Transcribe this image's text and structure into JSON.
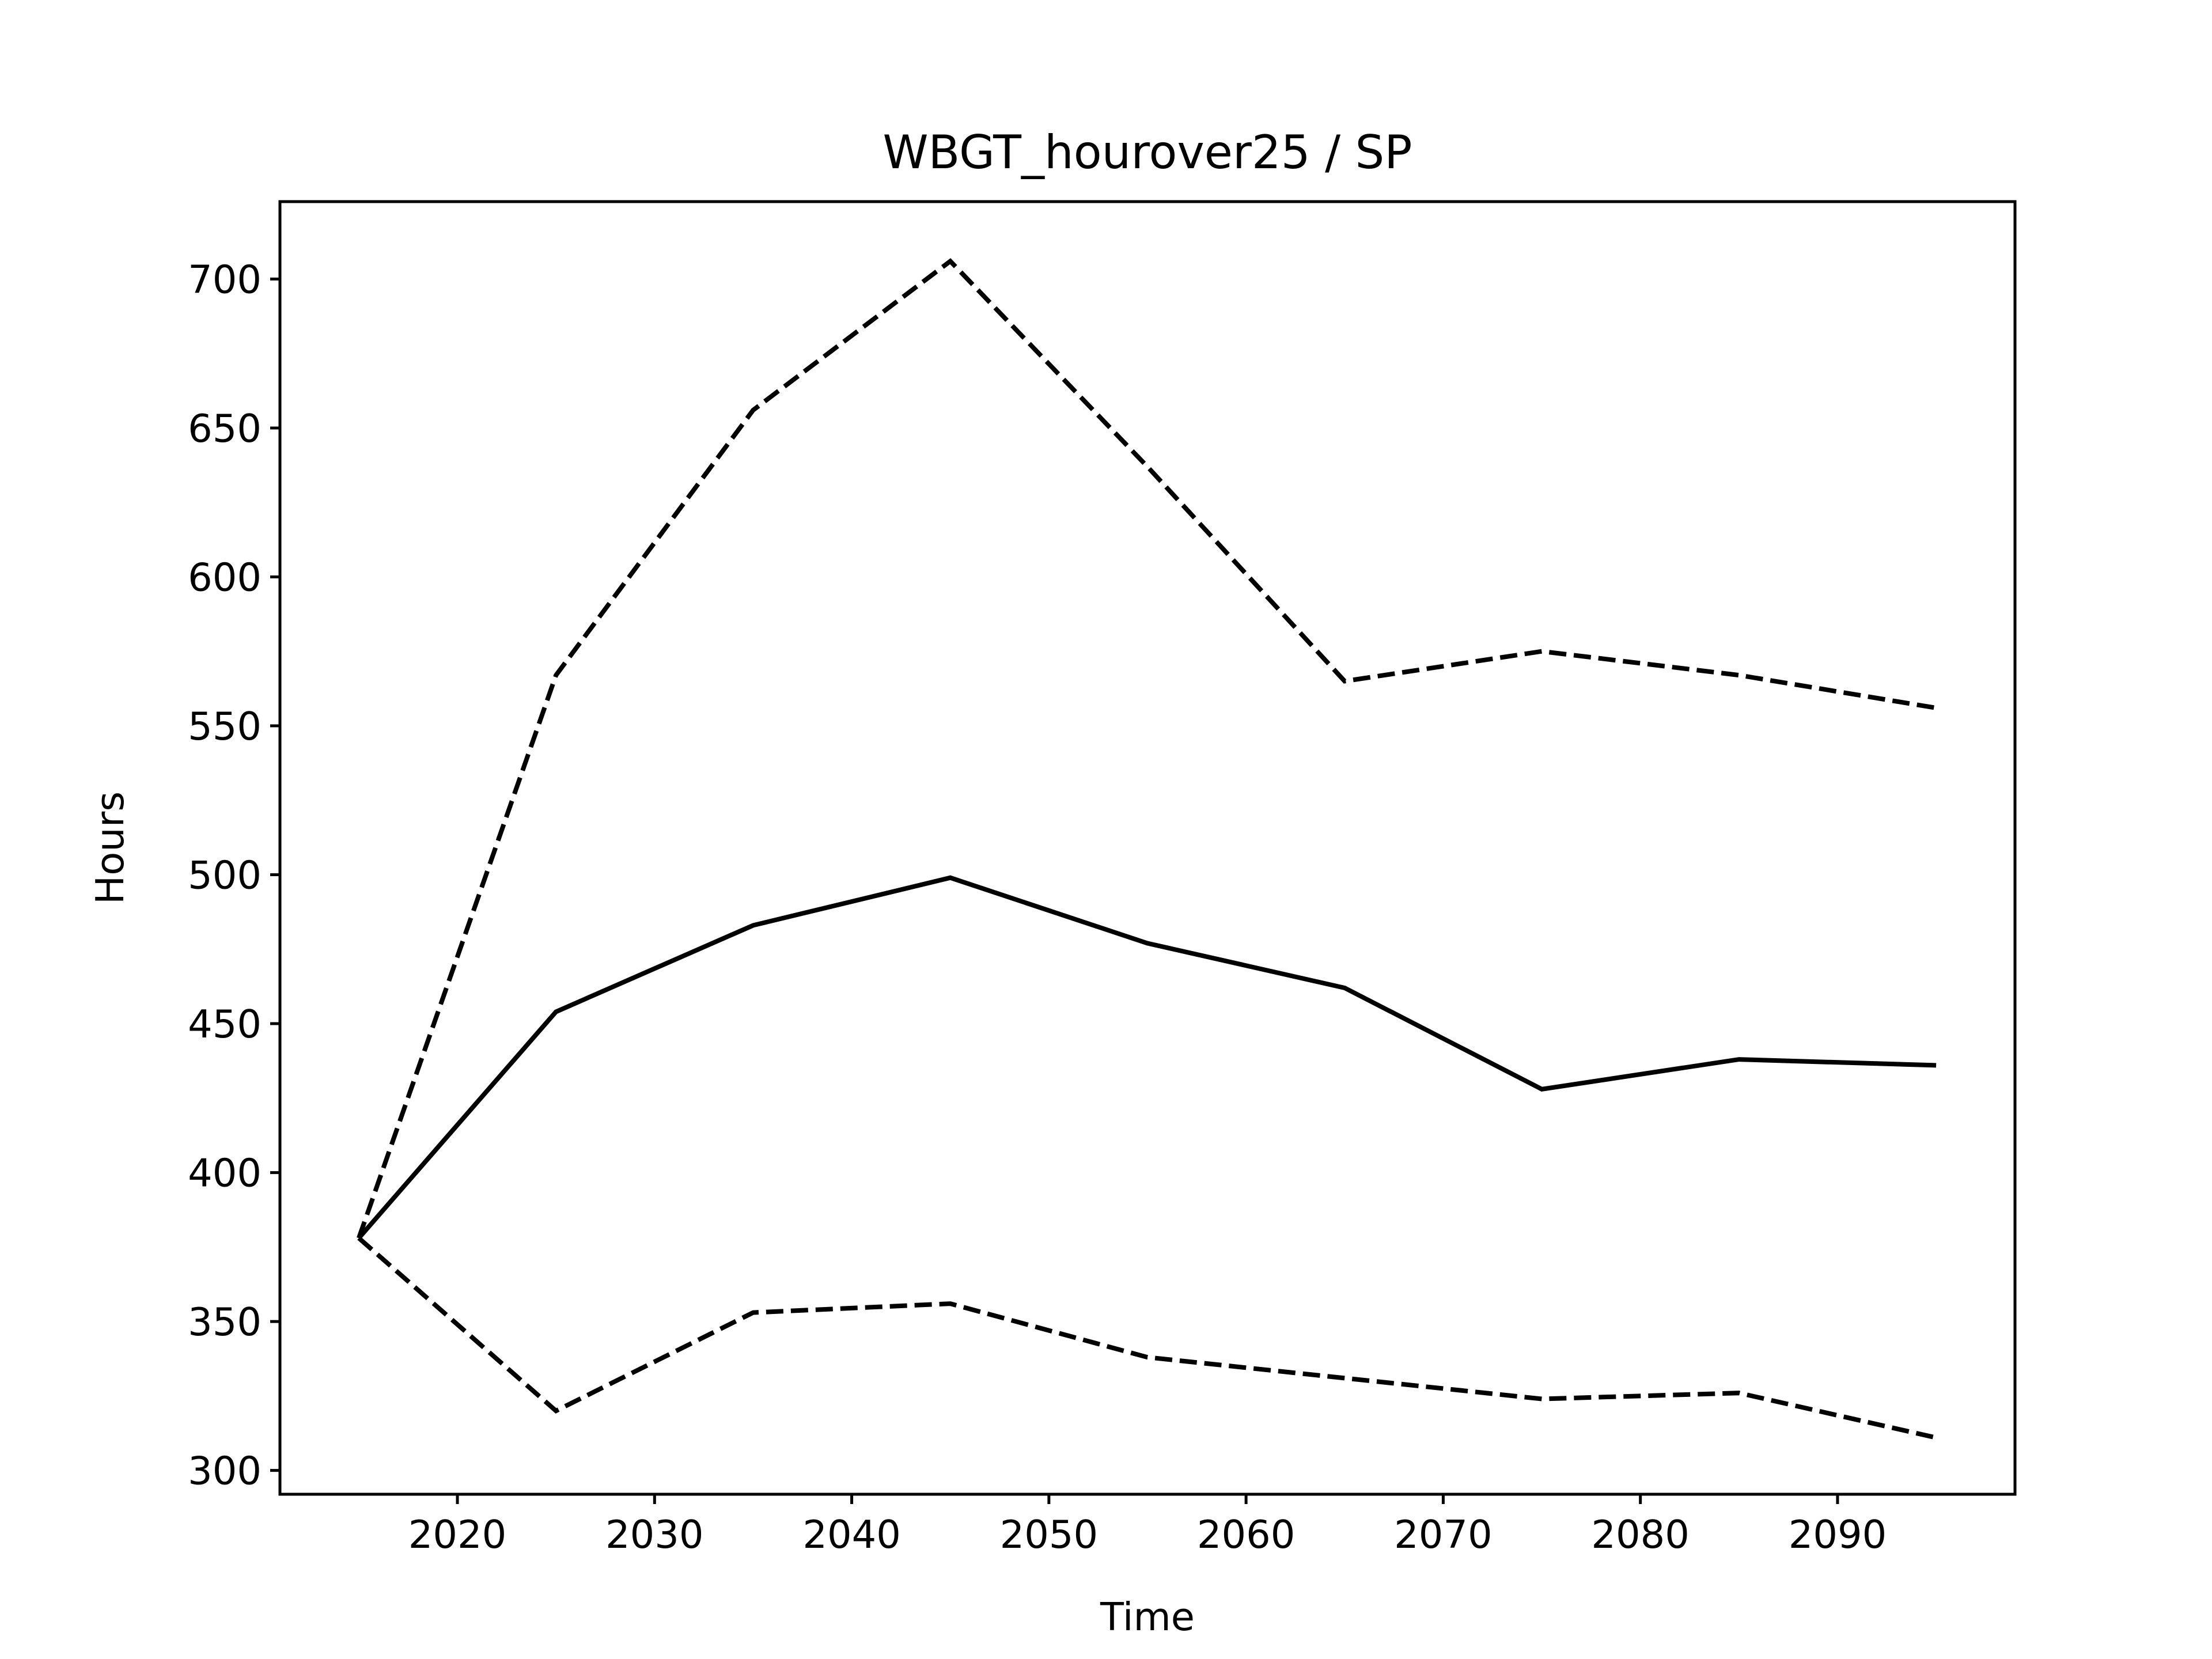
{
  "chart_data": {
    "type": "line",
    "title": "WBGT_hourover25 / SP",
    "xlabel": "Time",
    "ylabel": "Hours",
    "xlim": [
      2011,
      2099
    ],
    "ylim": [
      292,
      726
    ],
    "xticks": [
      2020,
      2030,
      2040,
      2050,
      2060,
      2070,
      2080,
      2090
    ],
    "yticks": [
      300,
      350,
      400,
      450,
      500,
      550,
      600,
      650,
      700
    ],
    "grid": false,
    "legend": "none",
    "x": [
      2015,
      2025,
      2035,
      2045,
      2055,
      2065,
      2075,
      2085,
      2095
    ],
    "series": [
      {
        "style": "solid",
        "color": "#000000",
        "values": [
          378,
          454,
          483,
          499,
          477,
          462,
          428,
          438,
          436
        ]
      },
      {
        "style": "dashed",
        "color": "#000000",
        "values": [
          378,
          567,
          656,
          706,
          637,
          565,
          575,
          567,
          556
        ]
      },
      {
        "style": "dashed",
        "color": "#000000",
        "values": [
          378,
          320,
          353,
          356,
          338,
          331,
          324,
          326,
          311
        ]
      }
    ]
  }
}
